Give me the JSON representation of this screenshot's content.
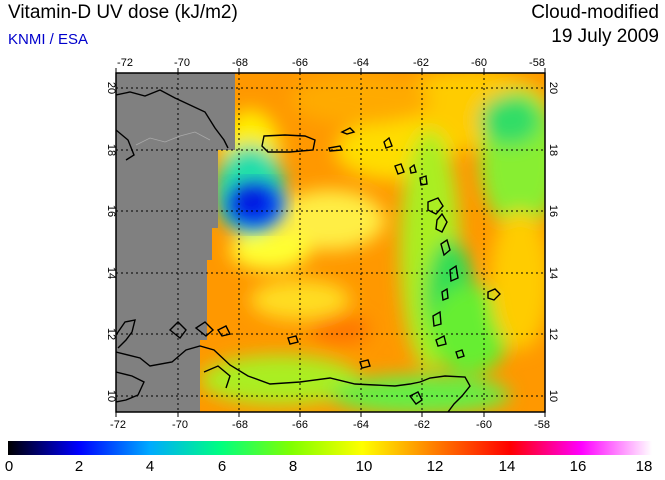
{
  "header": {
    "title": "Vitamin-D UV dose (kJ/m2)",
    "credit": "KNMI / ESA",
    "product": "Cloud-modified",
    "date": "19 July 2009"
  },
  "map": {
    "lon_range": [
      -72,
      -58
    ],
    "lat_range": [
      9.5,
      20.5
    ],
    "lon_ticks": [
      "-72",
      "-70",
      "-68",
      "-66",
      "-64",
      "-62",
      "-60",
      "-58"
    ],
    "lat_ticks": [
      "10",
      "12",
      "14",
      "16",
      "18",
      "20"
    ],
    "gridlines": true,
    "no_data_color": "#808080",
    "coastline_color": "#000000"
  },
  "colorbar": {
    "min": 0,
    "max": 18,
    "tick_labels": [
      "0",
      "2",
      "4",
      "6",
      "8",
      "10",
      "12",
      "14",
      "16",
      "18"
    ],
    "colors": [
      "#000000",
      "#0000ff",
      "#00aaff",
      "#00ff80",
      "#80ff00",
      "#ffff00",
      "#ff8000",
      "#ff0000",
      "#ff00ff",
      "#ffffff"
    ]
  }
}
